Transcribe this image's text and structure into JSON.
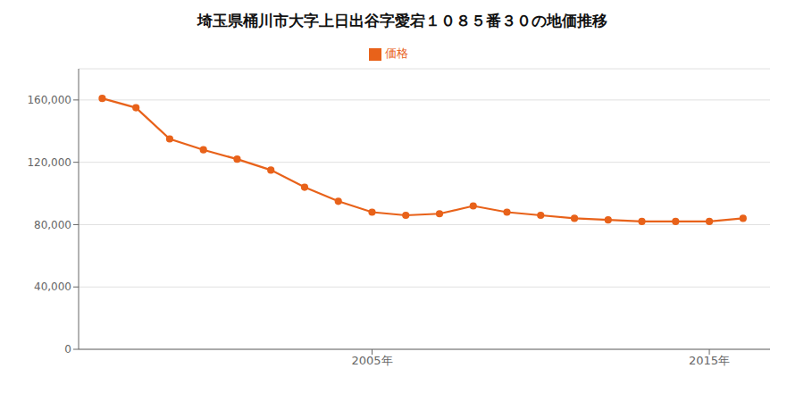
{
  "chart_data": {
    "type": "line",
    "title": "埼玉県桶川市大字上日出谷字愛宕１０８５番３０の地価推移",
    "x": [
      1997,
      1998,
      1999,
      2000,
      2001,
      2002,
      2003,
      2004,
      2005,
      2006,
      2007,
      2008,
      2009,
      2010,
      2011,
      2012,
      2013,
      2014,
      2015,
      2016
    ],
    "series": [
      {
        "name": "価格",
        "color": "#e8621a",
        "marker": "circle",
        "values": [
          161000,
          155000,
          135000,
          128000,
          122000,
          115000,
          104000,
          95000,
          88000,
          86000,
          87000,
          92000,
          88000,
          86000,
          84000,
          83000,
          82000,
          82000,
          82000,
          84000
        ]
      }
    ],
    "xlim": [
      1996.3,
      2016.8
    ],
    "xticks": [
      {
        "value": 2005,
        "label": "2005年"
      },
      {
        "value": 2015,
        "label": "2015年"
      }
    ],
    "ylim": [
      0,
      180000
    ],
    "yticks": [
      0,
      {
        "value": 40000,
        "label": "40,000"
      },
      {
        "value": 80000,
        "label": "80,000"
      },
      {
        "value": 120000,
        "label": "120,000"
      },
      {
        "value": 160000,
        "label": "160,000"
      }
    ],
    "grid": true,
    "legend": "top"
  }
}
